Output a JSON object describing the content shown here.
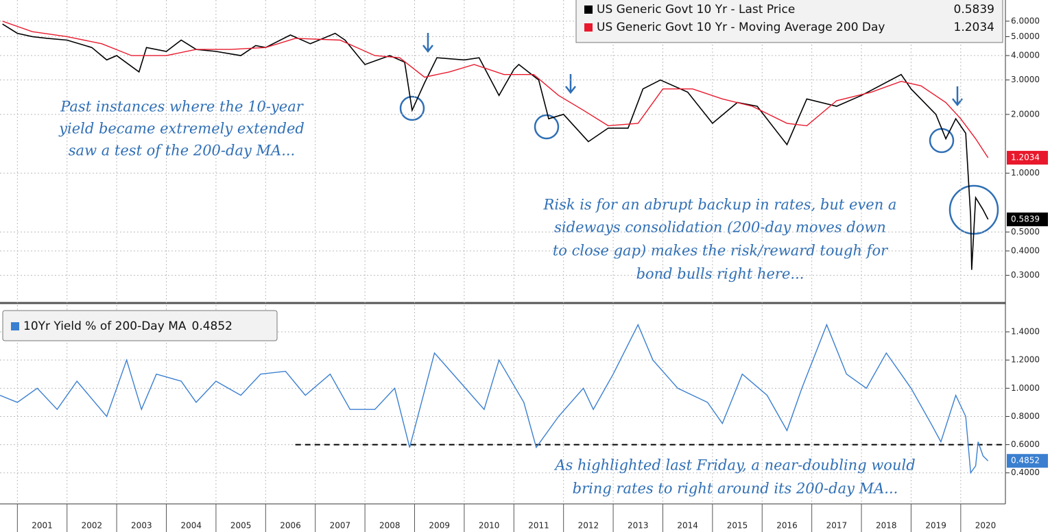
{
  "chart_data": [
    {
      "type": "line",
      "log_scale": true,
      "grid": true,
      "legend": "top-right",
      "xlim": [
        2000.65,
        2020.9
      ],
      "ylim": [
        0.22,
        7.7
      ],
      "yticks": [
        {
          "value": 6,
          "label": "6.0000"
        },
        {
          "value": 5,
          "label": "5.0000"
        },
        {
          "value": 4,
          "label": "4.0000"
        },
        {
          "value": 3,
          "label": "3.0000"
        },
        {
          "value": 2,
          "label": "2.0000"
        },
        {
          "value": 1,
          "label": "1.0000"
        },
        {
          "value": 0.5,
          "label": "0.5000"
        },
        {
          "value": 0.4,
          "label": "0.4000"
        },
        {
          "value": 0.3,
          "label": "0.3000"
        }
      ],
      "series": [
        {
          "name": "US Generic Govt 10 Yr - Last Price",
          "last_value": 0.5839,
          "color": "#000000",
          "x": [
            2000.7,
            2001.0,
            2001.3,
            2001.6,
            2002.0,
            2002.5,
            2002.8,
            2003.0,
            2003.45,
            2003.6,
            2004.0,
            2004.3,
            2004.6,
            2005.0,
            2005.5,
            2005.8,
            2006.0,
            2006.5,
            2006.9,
            2007.4,
            2007.6,
            2008.0,
            2008.5,
            2008.8,
            2008.95,
            2009.2,
            2009.45,
            2010.0,
            2010.3,
            2010.7,
            2011.0,
            2011.1,
            2011.5,
            2011.7,
            2012.0,
            2012.5,
            2012.9,
            2013.3,
            2013.6,
            2013.95,
            2014.5,
            2015.0,
            2015.5,
            2015.9,
            2016.5,
            2016.9,
            2017.5,
            2018.0,
            2018.8,
            2019.0,
            2019.5,
            2019.7,
            2019.9,
            2020.1,
            2020.2,
            2020.22,
            2020.3,
            2020.45,
            2020.55
          ],
          "values": [
            5.8,
            5.2,
            5.0,
            4.9,
            4.8,
            4.4,
            3.8,
            4.0,
            3.3,
            4.4,
            4.2,
            4.8,
            4.3,
            4.2,
            4.0,
            4.5,
            4.4,
            5.1,
            4.6,
            5.2,
            4.8,
            3.6,
            4.0,
            3.7,
            2.1,
            2.9,
            3.9,
            3.8,
            3.9,
            2.5,
            3.4,
            3.6,
            3.0,
            1.9,
            2.0,
            1.45,
            1.7,
            1.7,
            2.7,
            3.0,
            2.6,
            1.8,
            2.3,
            2.2,
            1.4,
            2.4,
            2.2,
            2.5,
            3.2,
            2.7,
            2.0,
            1.5,
            1.9,
            1.6,
            0.6,
            0.32,
            0.75,
            0.65,
            0.58
          ]
        },
        {
          "name": "US Generic Govt 10 Yr - Moving Average 200 Day",
          "last_value": 1.2034,
          "color": "#e8192c",
          "x": [
            2000.7,
            2001.3,
            2002.0,
            2002.7,
            2003.3,
            2004.0,
            2004.6,
            2005.3,
            2006.0,
            2006.6,
            2007.5,
            2008.2,
            2008.7,
            2009.2,
            2009.7,
            2010.2,
            2010.8,
            2011.4,
            2011.9,
            2012.4,
            2012.9,
            2013.5,
            2014.0,
            2014.6,
            2015.2,
            2015.8,
            2016.5,
            2016.9,
            2017.5,
            2018.2,
            2018.8,
            2019.2,
            2019.7,
            2020.0,
            2020.3,
            2020.55
          ],
          "values": [
            6.0,
            5.3,
            5.0,
            4.6,
            4.0,
            4.0,
            4.3,
            4.3,
            4.4,
            4.9,
            4.8,
            4.0,
            3.9,
            3.1,
            3.3,
            3.6,
            3.2,
            3.2,
            2.5,
            2.1,
            1.75,
            1.8,
            2.7,
            2.7,
            2.4,
            2.2,
            1.8,
            1.75,
            2.35,
            2.6,
            2.95,
            2.8,
            2.3,
            1.9,
            1.5,
            1.2
          ]
        }
      ],
      "annotations": [
        [
          "Past instances where the 10-year",
          "yield became extremely extended",
          "saw a test of the 200-day MA..."
        ],
        [
          "Risk is for an abrupt backup in rates, but even a",
          "sideways consolidation (200-day moves down",
          "to close gap) makes the risk/reward tough for",
          "bond bulls right here..."
        ]
      ]
    },
    {
      "type": "line",
      "grid": true,
      "legend": "top-left",
      "xlim": [
        2000.65,
        2020.9
      ],
      "ylim": [
        0.18,
        1.58
      ],
      "xticks": [
        2001,
        2002,
        2003,
        2004,
        2005,
        2006,
        2007,
        2008,
        2009,
        2010,
        2011,
        2012,
        2013,
        2014,
        2015,
        2016,
        2017,
        2018,
        2019,
        2020
      ],
      "yticks": [
        {
          "value": 1.4,
          "label": "1.4000"
        },
        {
          "value": 1.2,
          "label": "1.2000"
        },
        {
          "value": 1.0,
          "label": "1.0000"
        },
        {
          "value": 0.8,
          "label": "0.8000"
        },
        {
          "value": 0.6,
          "label": "0.6000"
        },
        {
          "value": 0.4,
          "label": "0.4000"
        }
      ],
      "hline": {
        "y": 0.6,
        "x_start": 2006.6
      },
      "series": [
        {
          "name": "10Yr Yield % of 200-Day MA",
          "last_value": 0.4852,
          "color": "#3a7fd0",
          "x": [
            2000.65,
            2001.0,
            2001.4,
            2001.8,
            2002.2,
            2002.8,
            2003.2,
            2003.5,
            2003.8,
            2004.3,
            2004.6,
            2005.0,
            2005.5,
            2005.9,
            2006.4,
            2006.8,
            2007.3,
            2007.7,
            2008.2,
            2008.6,
            2008.9,
            2009.4,
            2009.9,
            2010.4,
            2010.7,
            2011.2,
            2011.45,
            2011.9,
            2012.4,
            2012.6,
            2013.0,
            2013.5,
            2013.8,
            2014.3,
            2014.9,
            2015.2,
            2015.6,
            2016.1,
            2016.5,
            2016.8,
            2017.3,
            2017.7,
            2018.1,
            2018.5,
            2019.0,
            2019.4,
            2019.6,
            2019.9,
            2020.1,
            2020.2,
            2020.3,
            2020.35,
            2020.45,
            2020.55
          ],
          "values": [
            0.95,
            0.9,
            1.0,
            0.85,
            1.05,
            0.8,
            1.2,
            0.85,
            1.1,
            1.05,
            0.9,
            1.05,
            0.95,
            1.1,
            1.12,
            0.95,
            1.1,
            0.85,
            0.85,
            1.0,
            0.58,
            1.25,
            1.05,
            0.85,
            1.2,
            0.9,
            0.58,
            0.8,
            1.0,
            0.85,
            1.1,
            1.45,
            1.2,
            1.0,
            0.9,
            0.75,
            1.1,
            0.95,
            0.7,
            1.0,
            1.45,
            1.1,
            1.0,
            1.25,
            1.0,
            0.75,
            0.62,
            0.95,
            0.8,
            0.4,
            0.45,
            0.62,
            0.52,
            0.4852
          ]
        }
      ],
      "annotations": [
        [
          "As highlighted last Friday, a near-doubling would",
          "bring rates to right around its 200-day MA..."
        ]
      ]
    }
  ]
}
